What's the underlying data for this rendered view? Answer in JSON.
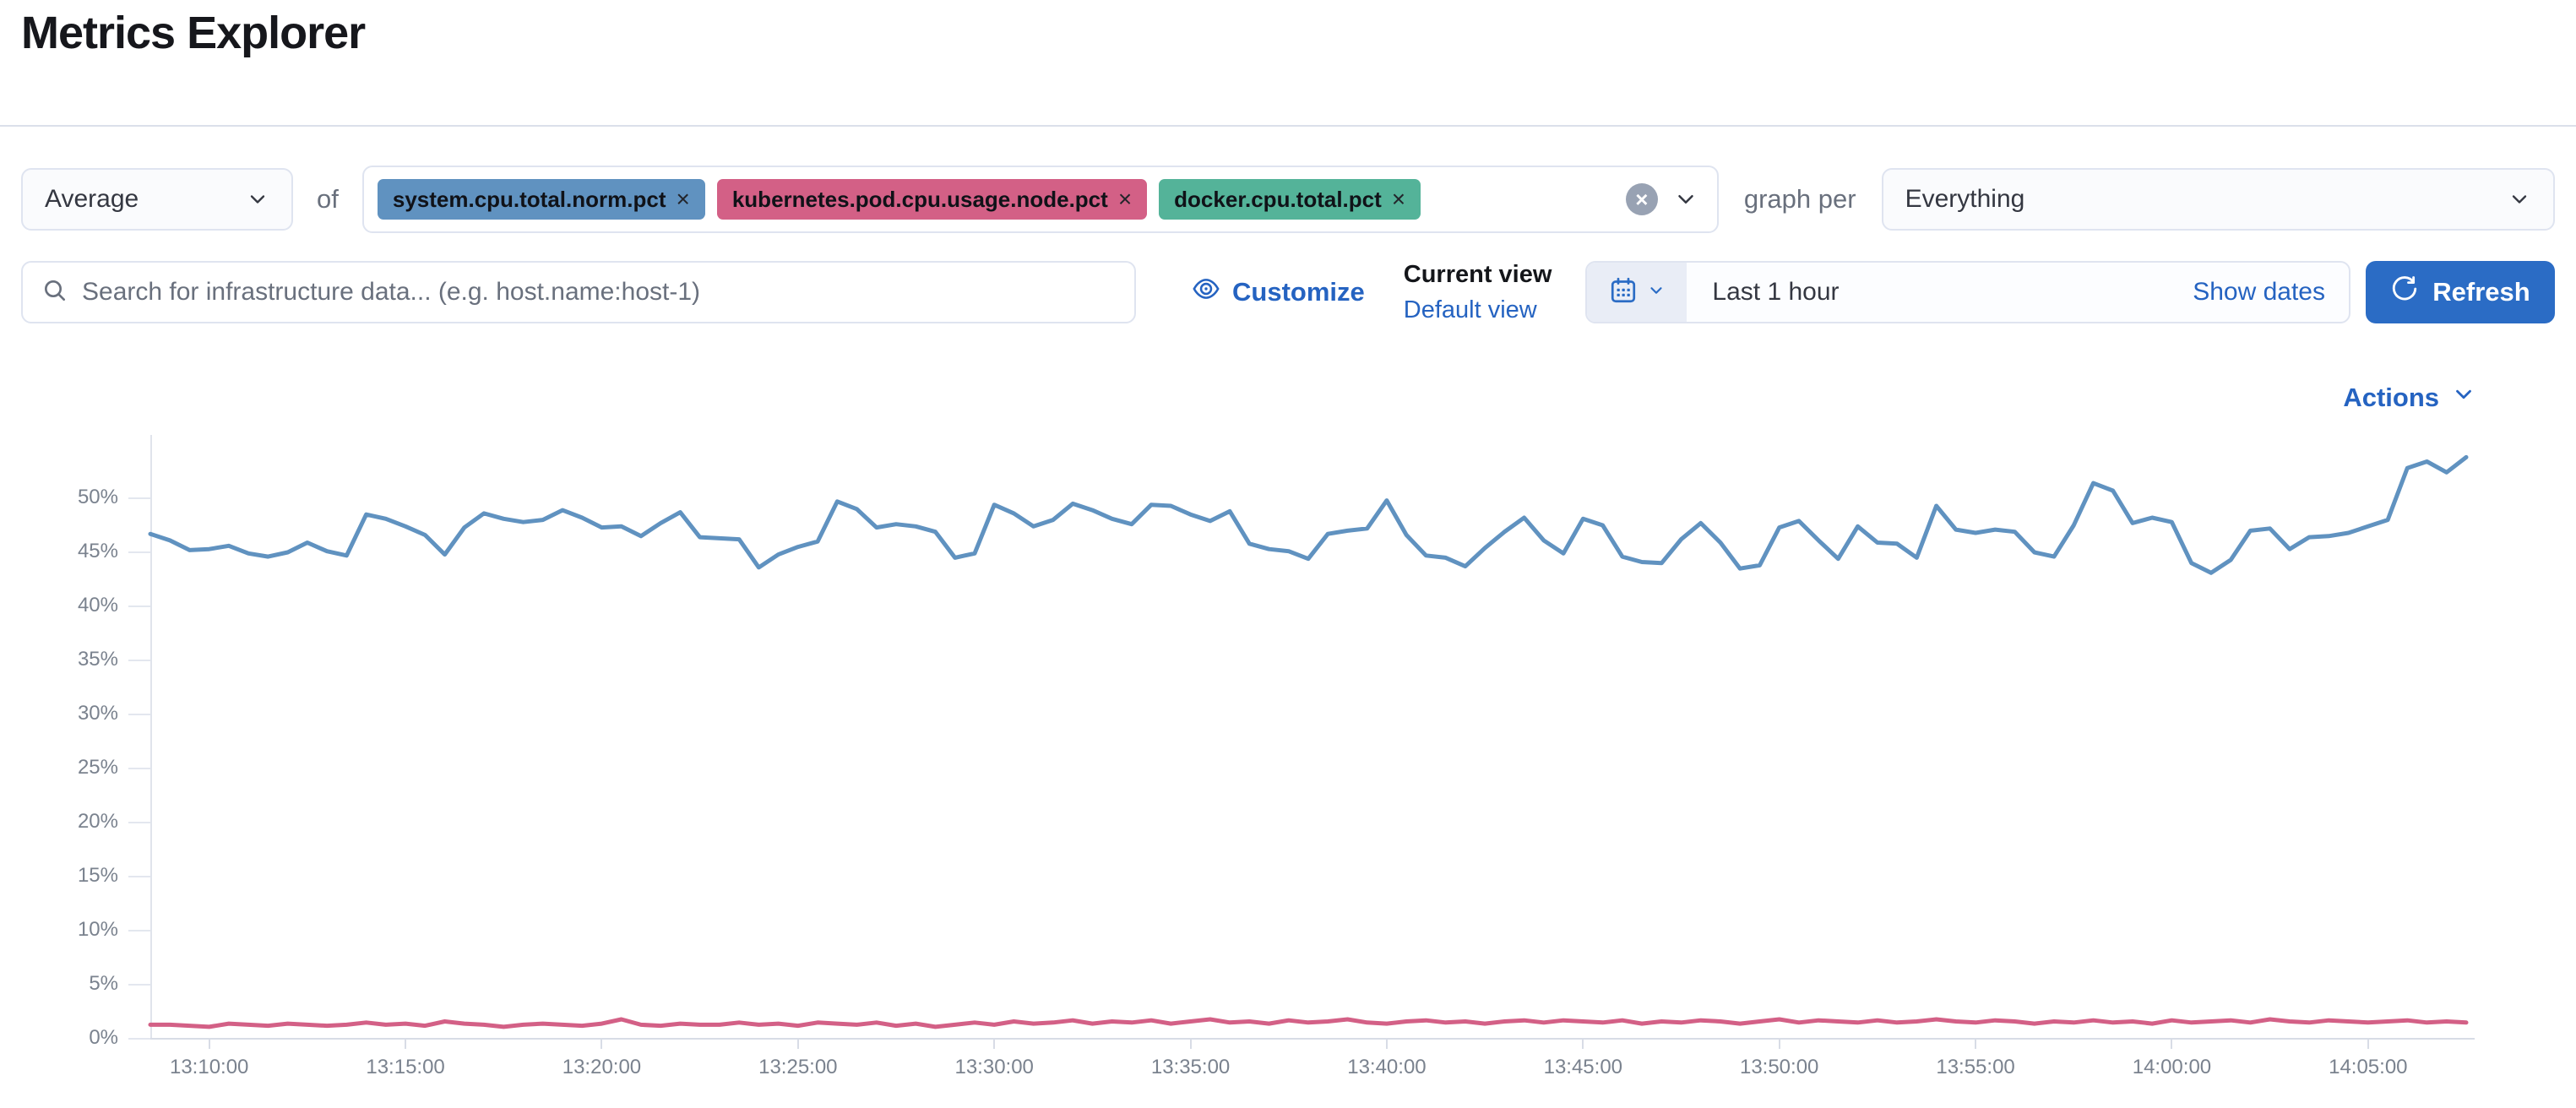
{
  "page": {
    "title": "Metrics Explorer"
  },
  "toolbar": {
    "aggregation": {
      "value": "Average"
    },
    "of_label": "of",
    "metrics": {
      "items": [
        {
          "label": "system.cpu.total.norm.pct",
          "remove_icon": "×",
          "color": "#6092C0"
        },
        {
          "label": "kubernetes.pod.cpu.usage.node.pct",
          "remove_icon": "×",
          "color": "#D36086"
        },
        {
          "label": "docker.cpu.total.pct",
          "remove_icon": "×",
          "color": "#54B399"
        }
      ],
      "clear_icon": "×"
    },
    "graph_per_label": "graph per",
    "group_by": {
      "value": "Everything"
    }
  },
  "filter_bar": {
    "search": {
      "placeholder": "Search for infrastructure data... (e.g. host.name:host-1)",
      "value": ""
    },
    "customize_label": "Customize",
    "current_view_label": "Current view",
    "default_view_label": "Default view",
    "datepicker": {
      "quick_value": "Last 1 hour",
      "show_dates_label": "Show dates"
    },
    "refresh_label": "Refresh"
  },
  "actions_label": "Actions",
  "colors": {
    "link": "#2563c1",
    "primary_button": "#2b6cc5",
    "series_blue": "#6092C0",
    "series_pink": "#D36086"
  },
  "chart_data": {
    "type": "line",
    "title": "",
    "xlabel": "",
    "ylabel": "",
    "grid": "ticks-only",
    "legend": "none",
    "x_start_time": "13:08:30",
    "x_interval_seconds": 30,
    "x_tick_labels": [
      "13:10:00",
      "13:15:00",
      "13:20:00",
      "13:25:00",
      "13:30:00",
      "13:35:00",
      "13:40:00",
      "13:45:00",
      "13:50:00",
      "13:55:00",
      "14:00:00",
      "14:05:00"
    ],
    "x_tick_offsets_seconds": [
      90,
      390,
      690,
      990,
      1290,
      1590,
      1890,
      2190,
      2490,
      2790,
      3090,
      3390
    ],
    "ylim": [
      0,
      55
    ],
    "y_ticks": [
      0,
      5,
      10,
      15,
      20,
      25,
      30,
      35,
      40,
      45,
      50
    ],
    "y_tick_suffix": "%",
    "series": [
      {
        "name": "system.cpu.total.norm.pct (avg)",
        "color": "#6092C0",
        "unit": "%",
        "values": [
          46.7,
          46.1,
          45.2,
          45.3,
          45.6,
          44.9,
          44.6,
          45.0,
          45.9,
          45.1,
          44.7,
          48.5,
          48.1,
          47.4,
          46.6,
          44.8,
          47.3,
          48.6,
          48.1,
          47.8,
          48.0,
          48.9,
          48.2,
          47.3,
          47.4,
          46.5,
          47.7,
          48.7,
          46.4,
          46.3,
          46.2,
          43.6,
          44.8,
          45.5,
          46.0,
          49.7,
          49.0,
          47.3,
          47.6,
          47.4,
          46.9,
          44.5,
          44.9,
          49.4,
          48.6,
          47.4,
          48.0,
          49.5,
          48.9,
          48.1,
          47.6,
          49.4,
          49.3,
          48.5,
          47.9,
          48.8,
          45.8,
          45.3,
          45.1,
          44.4,
          46.7,
          47.0,
          47.2,
          49.8,
          46.6,
          44.7,
          44.5,
          43.7,
          45.4,
          46.9,
          48.2,
          46.1,
          44.9,
          48.1,
          47.5,
          44.6,
          44.1,
          44.0,
          46.2,
          47.7,
          45.9,
          43.5,
          43.8,
          47.3,
          47.9,
          46.1,
          44.4,
          47.4,
          45.9,
          45.8,
          44.5,
          49.3,
          47.1,
          46.8,
          47.1,
          46.9,
          45.0,
          44.6,
          47.5,
          51.4,
          50.7,
          47.7,
          48.2,
          47.8,
          44.0,
          43.1,
          44.3,
          47.0,
          47.2,
          45.3,
          46.4,
          46.5,
          46.8,
          47.4,
          48.0,
          52.8,
          53.4,
          52.4,
          53.8
        ]
      },
      {
        "name": "kubernetes.pod.cpu.usage.node.pct (avg)",
        "color": "#D36086",
        "unit": "%",
        "values": [
          1.3,
          1.3,
          1.2,
          1.1,
          1.4,
          1.3,
          1.2,
          1.4,
          1.3,
          1.2,
          1.3,
          1.5,
          1.3,
          1.4,
          1.2,
          1.6,
          1.4,
          1.3,
          1.1,
          1.3,
          1.4,
          1.3,
          1.2,
          1.4,
          1.8,
          1.3,
          1.2,
          1.4,
          1.3,
          1.3,
          1.5,
          1.3,
          1.4,
          1.2,
          1.5,
          1.4,
          1.3,
          1.5,
          1.2,
          1.4,
          1.1,
          1.3,
          1.5,
          1.3,
          1.6,
          1.4,
          1.5,
          1.7,
          1.4,
          1.6,
          1.5,
          1.7,
          1.4,
          1.6,
          1.8,
          1.5,
          1.6,
          1.4,
          1.7,
          1.5,
          1.6,
          1.8,
          1.5,
          1.4,
          1.6,
          1.7,
          1.5,
          1.6,
          1.4,
          1.6,
          1.7,
          1.5,
          1.7,
          1.6,
          1.5,
          1.7,
          1.4,
          1.6,
          1.5,
          1.7,
          1.6,
          1.4,
          1.6,
          1.8,
          1.5,
          1.7,
          1.6,
          1.5,
          1.7,
          1.5,
          1.6,
          1.8,
          1.6,
          1.5,
          1.7,
          1.6,
          1.4,
          1.6,
          1.5,
          1.7,
          1.5,
          1.6,
          1.4,
          1.7,
          1.5,
          1.6,
          1.7,
          1.5,
          1.8,
          1.6,
          1.5,
          1.7,
          1.6,
          1.5,
          1.6,
          1.7,
          1.5,
          1.6,
          1.5
        ]
      }
    ]
  }
}
